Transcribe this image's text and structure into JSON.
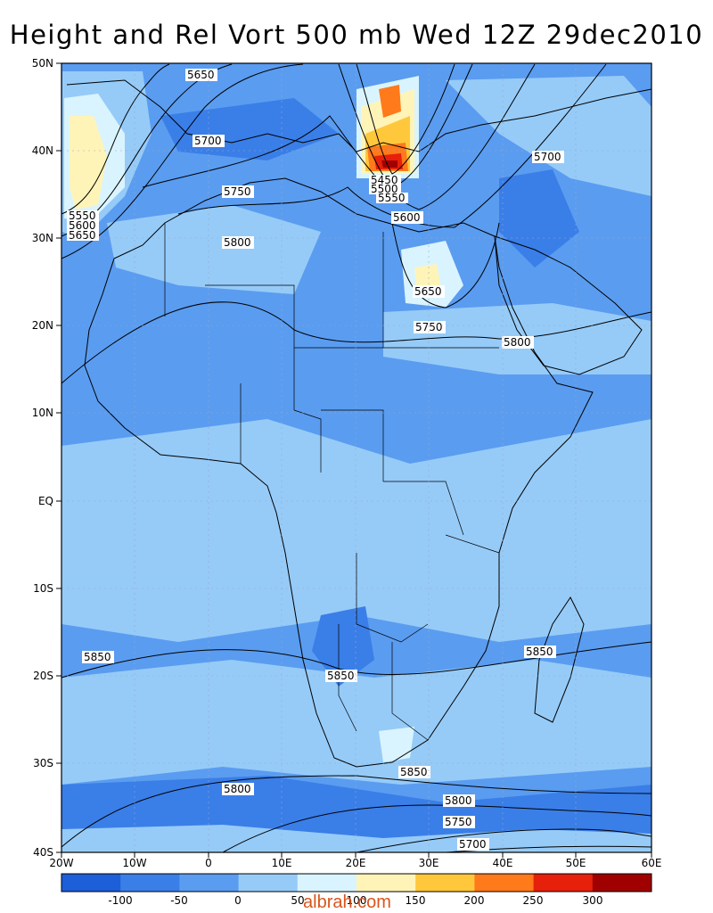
{
  "title": "Height and Rel Vort 500 mb Wed 12Z 29dec2010",
  "watermark": "albrah.com",
  "map": {
    "latitude_labels": [
      "50N",
      "40N",
      "30N",
      "20N",
      "10N",
      "EQ",
      "10S",
      "20S",
      "30S",
      "40S"
    ],
    "longitude_labels": [
      "20W",
      "10W",
      "0",
      "10E",
      "20E",
      "30E",
      "40E",
      "50E",
      "60E"
    ]
  },
  "height_contour_labels": [
    "5650",
    "5700",
    "5750",
    "5800",
    "5700",
    "5550",
    "5600",
    "5650",
    "5450",
    "5500",
    "5550",
    "5600",
    "5650",
    "5750",
    "5800",
    "5850",
    "5850",
    "5850",
    "5850",
    "5800",
    "5800",
    "5750",
    "5700"
  ],
  "colorbar": {
    "tick_labels": [
      "-100",
      "-50",
      "0",
      "50",
      "100",
      "150",
      "200",
      "250",
      "300"
    ],
    "colors": [
      "#1c5fd8",
      "#3a7ee8",
      "#5a9cf0",
      "#96cbf8",
      "#d9f4ff",
      "#fff4b8",
      "#ffc83c",
      "#ff7a1a",
      "#e6200a",
      "#a00000"
    ]
  }
}
